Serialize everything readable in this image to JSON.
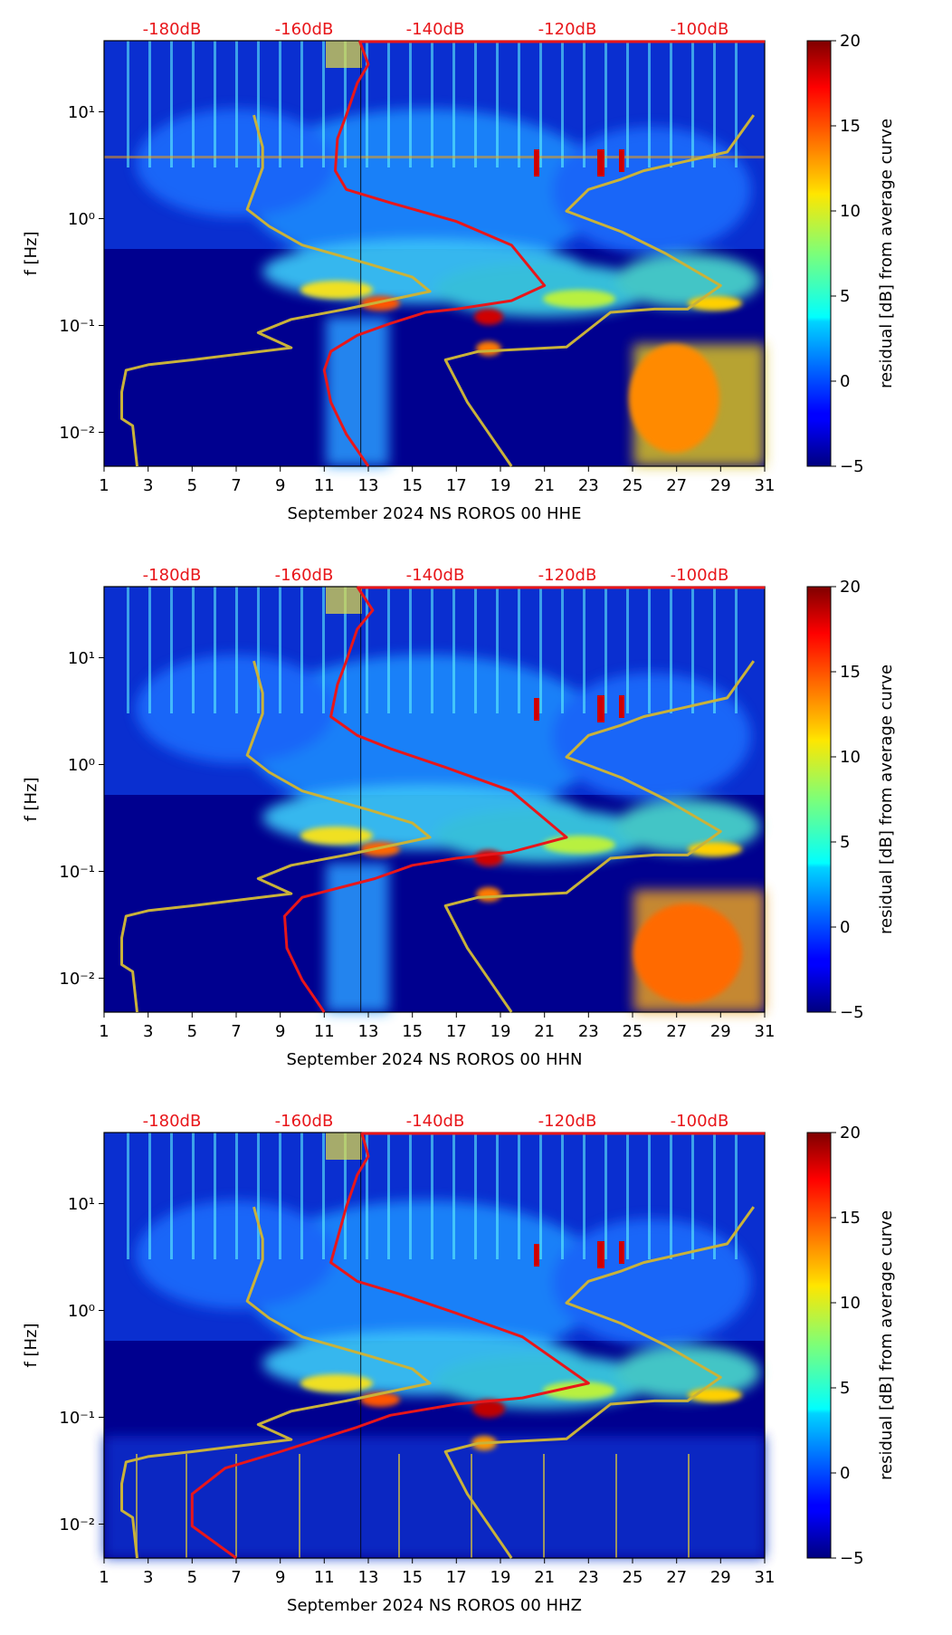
{
  "chart_data": [
    {
      "type": "heatmap",
      "xlabel": "September 2024 NS ROROS 00 HHE",
      "ylabel": "f [Hz]",
      "xlim": [
        1,
        31
      ],
      "xticks": [
        "1",
        "3",
        "5",
        "7",
        "9",
        "11",
        "13",
        "15",
        "17",
        "19",
        "21",
        "23",
        "25",
        "27",
        "29",
        "31"
      ],
      "ylim": [
        0.005,
        50
      ],
      "yscale": "log",
      "yticks": [
        "10⁻²",
        "10⁻¹",
        "10⁰",
        "10¹"
      ],
      "top_axis_labels": [
        "-180dB",
        "-160dB",
        "-140dB",
        "-120dB",
        "-100dB"
      ],
      "colorbar": {
        "label": "residual [dB] from average curve",
        "min": -5,
        "max": 20,
        "ticks": [
          "−5",
          "0",
          "5",
          "10",
          "15",
          "20"
        ]
      },
      "series": [
        {
          "color": "#e8161a",
          "points": [
            [
              12.6,
              50
            ],
            [
              13,
              30
            ],
            [
              12.5,
              20
            ],
            [
              12,
              10
            ],
            [
              11.6,
              6
            ],
            [
              11.5,
              3
            ],
            [
              12,
              2
            ],
            [
              14,
              1.5
            ],
            [
              17,
              1
            ],
            [
              19.5,
              0.6
            ],
            [
              21,
              0.25
            ],
            [
              19.5,
              0.18
            ],
            [
              17,
              0.15
            ],
            [
              15.6,
              0.14
            ],
            [
              14,
              0.11
            ],
            [
              12.5,
              0.085
            ],
            [
              11.3,
              0.06
            ],
            [
              11,
              0.04
            ],
            [
              11.3,
              0.02
            ],
            [
              12,
              0.01
            ],
            [
              13,
              0.005
            ]
          ]
        },
        {
          "color": "#c9b23a",
          "points": [
            [
              7.8,
              10
            ],
            [
              8.2,
              5
            ],
            [
              8.2,
              3.2
            ],
            [
              7.5,
              1.3
            ],
            [
              8.5,
              0.9
            ],
            [
              10,
              0.6
            ],
            [
              13,
              0.4
            ],
            [
              15,
              0.3
            ],
            [
              15.8,
              0.22
            ],
            [
              12,
              0.15
            ],
            [
              9.5,
              0.12
            ],
            [
              8,
              0.09
            ],
            [
              9.5,
              0.065
            ],
            [
              5,
              0.05
            ],
            [
              3,
              0.045
            ],
            [
              2,
              0.04
            ],
            [
              1.8,
              0.025
            ],
            [
              1.8,
              0.014
            ],
            [
              2.3,
              0.012
            ],
            [
              2.5,
              0.005
            ]
          ]
        },
        {
          "color": "#c9b23a",
          "points": [
            [
              30.5,
              10
            ],
            [
              29.3,
              4.5
            ],
            [
              25.5,
              3
            ],
            [
              24.5,
              2.5
            ],
            [
              23,
              2
            ],
            [
              22,
              1.25
            ],
            [
              24.5,
              0.8
            ],
            [
              26.5,
              0.5
            ],
            [
              29,
              0.25
            ],
            [
              27.5,
              0.15
            ],
            [
              26,
              0.15
            ],
            [
              24,
              0.14
            ],
            [
              22,
              0.066
            ],
            [
              18,
              0.06
            ],
            [
              16.5,
              0.05
            ],
            [
              17.5,
              0.02
            ],
            [
              19.5,
              0.005
            ]
          ]
        }
      ]
    },
    {
      "type": "heatmap",
      "xlabel": "September 2024 NS ROROS 00 HHN",
      "ylabel": "f [Hz]",
      "xlim": [
        1,
        31
      ],
      "xticks": [
        "1",
        "3",
        "5",
        "7",
        "9",
        "11",
        "13",
        "15",
        "17",
        "19",
        "21",
        "23",
        "25",
        "27",
        "29",
        "31"
      ],
      "ylim": [
        0.005,
        50
      ],
      "yscale": "log",
      "yticks": [
        "10⁻²",
        "10⁻¹",
        "10⁰",
        "10¹"
      ],
      "top_axis_labels": [
        "-180dB",
        "-160dB",
        "-140dB",
        "-120dB",
        "-100dB"
      ],
      "colorbar": {
        "label": "residual [dB] from average curve",
        "min": -5,
        "max": 20,
        "ticks": [
          "−5",
          "0",
          "5",
          "10",
          "15",
          "20"
        ]
      },
      "series": [
        {
          "color": "#e8161a",
          "points": [
            [
              12.5,
              50
            ],
            [
              13.2,
              30
            ],
            [
              12.5,
              20
            ],
            [
              12,
              10
            ],
            [
              11.6,
              6
            ],
            [
              11.3,
              3
            ],
            [
              12.5,
              2
            ],
            [
              14,
              1.5
            ],
            [
              16.5,
              1
            ],
            [
              19.5,
              0.6
            ],
            [
              22,
              0.22
            ],
            [
              19.5,
              0.16
            ],
            [
              17,
              0.14
            ],
            [
              15,
              0.12
            ],
            [
              13.3,
              0.09
            ],
            [
              10,
              0.06
            ],
            [
              9.2,
              0.04
            ],
            [
              9.3,
              0.02
            ],
            [
              10,
              0.01
            ],
            [
              11,
              0.005
            ]
          ]
        },
        {
          "color": "#c9b23a",
          "points": [
            [
              7.8,
              10
            ],
            [
              8.2,
              5
            ],
            [
              8.2,
              3.2
            ],
            [
              7.5,
              1.3
            ],
            [
              8.5,
              0.9
            ],
            [
              10,
              0.6
            ],
            [
              13,
              0.4
            ],
            [
              15,
              0.3
            ],
            [
              15.8,
              0.22
            ],
            [
              12,
              0.15
            ],
            [
              9.5,
              0.12
            ],
            [
              8,
              0.09
            ],
            [
              9.5,
              0.065
            ],
            [
              5,
              0.05
            ],
            [
              3,
              0.045
            ],
            [
              2,
              0.04
            ],
            [
              1.8,
              0.025
            ],
            [
              1.8,
              0.014
            ],
            [
              2.3,
              0.012
            ],
            [
              2.5,
              0.005
            ]
          ]
        },
        {
          "color": "#c9b23a",
          "points": [
            [
              30.5,
              10
            ],
            [
              29.3,
              4.5
            ],
            [
              25.5,
              3
            ],
            [
              24.5,
              2.5
            ],
            [
              23,
              2
            ],
            [
              22,
              1.25
            ],
            [
              24.5,
              0.8
            ],
            [
              26.5,
              0.5
            ],
            [
              29,
              0.25
            ],
            [
              27.5,
              0.15
            ],
            [
              26,
              0.15
            ],
            [
              24,
              0.14
            ],
            [
              22,
              0.066
            ],
            [
              18,
              0.06
            ],
            [
              16.5,
              0.05
            ],
            [
              17.5,
              0.02
            ],
            [
              19.5,
              0.005
            ]
          ]
        }
      ]
    },
    {
      "type": "heatmap",
      "xlabel": "September 2024 NS ROROS 00 HHZ",
      "ylabel": "f [Hz]",
      "xlim": [
        1,
        31
      ],
      "xticks": [
        "1",
        "3",
        "5",
        "7",
        "9",
        "11",
        "13",
        "15",
        "17",
        "19",
        "21",
        "23",
        "25",
        "27",
        "29",
        "31"
      ],
      "ylim": [
        0.005,
        50
      ],
      "yscale": "log",
      "yticks": [
        "10⁻²",
        "10⁻¹",
        "10⁰",
        "10¹"
      ],
      "top_axis_labels": [
        "-180dB",
        "-160dB",
        "-140dB",
        "-120dB",
        "-100dB"
      ],
      "colorbar": {
        "label": "residual [dB] from average curve",
        "min": -5,
        "max": 20,
        "ticks": [
          "−5",
          "0",
          "5",
          "10",
          "15",
          "20"
        ]
      },
      "series": [
        {
          "color": "#e8161a",
          "points": [
            [
              12.7,
              50
            ],
            [
              13,
              30
            ],
            [
              12.5,
              20
            ],
            [
              12,
              10
            ],
            [
              11.7,
              6
            ],
            [
              11.3,
              3
            ],
            [
              12.5,
              2
            ],
            [
              14.5,
              1.5
            ],
            [
              17,
              1
            ],
            [
              20,
              0.6
            ],
            [
              23,
              0.22
            ],
            [
              20,
              0.16
            ],
            [
              17,
              0.14
            ],
            [
              14,
              0.11
            ],
            [
              12.5,
              0.085
            ],
            [
              9,
              0.05
            ],
            [
              6.5,
              0.035
            ],
            [
              5,
              0.02
            ],
            [
              5,
              0.01
            ],
            [
              7,
              0.005
            ]
          ]
        },
        {
          "color": "#c9b23a",
          "points": [
            [
              7.8,
              10
            ],
            [
              8.2,
              5
            ],
            [
              8.2,
              3.2
            ],
            [
              7.5,
              1.3
            ],
            [
              8.5,
              0.9
            ],
            [
              10,
              0.6
            ],
            [
              13,
              0.4
            ],
            [
              15,
              0.3
            ],
            [
              15.8,
              0.22
            ],
            [
              12,
              0.15
            ],
            [
              9.5,
              0.12
            ],
            [
              8,
              0.09
            ],
            [
              9.5,
              0.065
            ],
            [
              5,
              0.05
            ],
            [
              3,
              0.045
            ],
            [
              2,
              0.04
            ],
            [
              1.8,
              0.025
            ],
            [
              1.8,
              0.014
            ],
            [
              2.3,
              0.012
            ],
            [
              2.5,
              0.005
            ]
          ]
        },
        {
          "color": "#c9b23a",
          "points": [
            [
              30.5,
              10
            ],
            [
              29.3,
              4.5
            ],
            [
              25.5,
              3
            ],
            [
              24.5,
              2.5
            ],
            [
              23,
              2
            ],
            [
              22,
              1.25
            ],
            [
              24.5,
              0.8
            ],
            [
              26.5,
              0.5
            ],
            [
              29,
              0.25
            ],
            [
              27.5,
              0.15
            ],
            [
              26,
              0.15
            ],
            [
              24,
              0.14
            ],
            [
              22,
              0.066
            ],
            [
              18,
              0.06
            ],
            [
              16.5,
              0.05
            ],
            [
              17.5,
              0.02
            ],
            [
              19.5,
              0.005
            ]
          ]
        }
      ]
    }
  ]
}
